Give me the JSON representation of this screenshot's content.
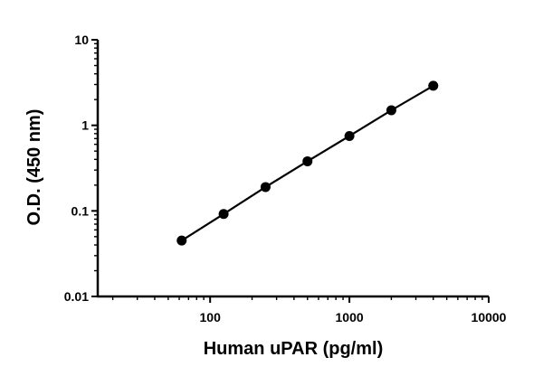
{
  "chart_data": {
    "type": "scatter",
    "xlabel": "Human uPAR (pg/ml)",
    "ylabel": "O.D. (450 nm)",
    "x_scale": "log",
    "y_scale": "log",
    "xlim": [
      15.6,
      10000
    ],
    "ylim": [
      0.01,
      10
    ],
    "x_ticks": [
      {
        "value": 100,
        "label": "100"
      },
      {
        "value": 1000,
        "label": "1000"
      },
      {
        "value": 10000,
        "label": "10000"
      }
    ],
    "y_ticks": [
      {
        "value": 0.01,
        "label": "0.01"
      },
      {
        "value": 0.1,
        "label": "0.1"
      },
      {
        "value": 1,
        "label": "1"
      },
      {
        "value": 10,
        "label": "10"
      }
    ],
    "grid": false,
    "legend": "none",
    "series": [
      {
        "x": [
          62.5,
          125,
          250,
          500,
          1000,
          2000,
          4000
        ],
        "y": [
          0.045,
          0.092,
          0.19,
          0.38,
          0.75,
          1.5,
          2.9
        ],
        "line": true,
        "color": "#000000"
      }
    ]
  }
}
